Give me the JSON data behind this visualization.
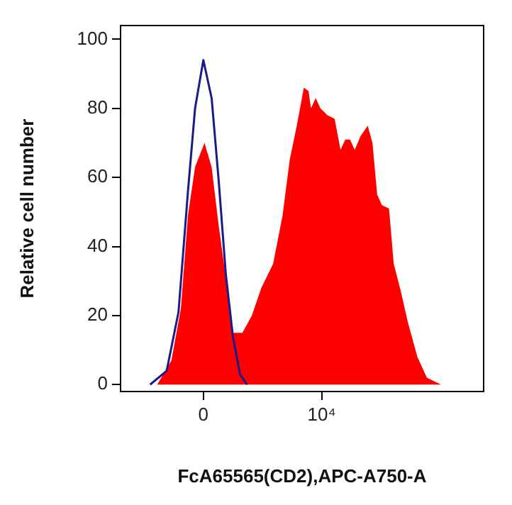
{
  "chart_data": {
    "type": "area",
    "xlabel": "FcA65565(CD2),APC-A750-A",
    "ylabel": "Relative cell number",
    "xlim": [
      -7000,
      23700
    ],
    "ylim": [
      -2,
      104
    ],
    "xticks": [
      0,
      {
        "value": 10000,
        "label": "10⁴"
      }
    ],
    "yticks": [
      0,
      20,
      40,
      60,
      80,
      100
    ],
    "grid": false,
    "legend": false,
    "series": [
      {
        "color": "#ff0000",
        "x": [
          -3900,
          -2700,
          -1900,
          -1300,
          -700,
          100,
          700,
          1300,
          1900,
          2500,
          3300,
          4100,
          4900,
          5900,
          6700,
          7300,
          7900,
          8500,
          8900,
          9100,
          9500,
          9900,
          10500,
          11100,
          11600,
          12000,
          12400,
          12800,
          13300,
          13900,
          14300,
          14700,
          15100,
          15700,
          16100,
          16700,
          17300,
          18100,
          18900,
          20100,
          21300
        ],
        "values": [
          0,
          7,
          22,
          49,
          63,
          70,
          63,
          46,
          31,
          15,
          15,
          20,
          28,
          35,
          49,
          65,
          75,
          86,
          85,
          80,
          83,
          80,
          78,
          77,
          68,
          71,
          71,
          68,
          72,
          75,
          70,
          55,
          52,
          51,
          35,
          27,
          18,
          8,
          2,
          0,
          0
        ]
      },
      {
        "type": "line",
        "color": "#1a1a8c",
        "x": [
          -4500,
          -3100,
          -2100,
          -1300,
          -700,
          0,
          700,
          1300,
          1900,
          2500,
          3100,
          3700
        ],
        "values": [
          0,
          4,
          21,
          56,
          80,
          94,
          83,
          59,
          32,
          14,
          3,
          0
        ]
      }
    ]
  }
}
